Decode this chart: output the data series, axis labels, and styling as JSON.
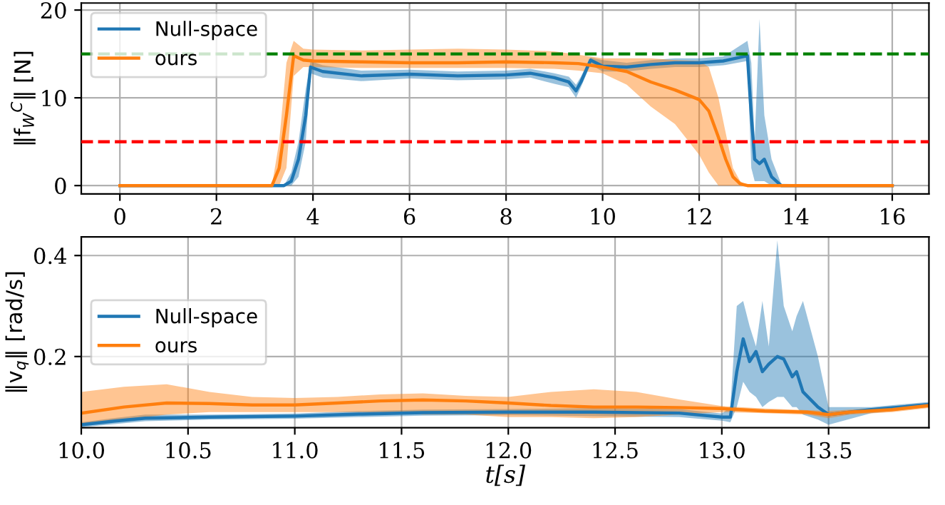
{
  "chart_data": [
    {
      "type": "line",
      "ylabel": "‖f$_{W}$$^{C}$‖ [N]",
      "xlim": [
        -0.8,
        16.76
      ],
      "ylim": [
        -0.95,
        20.8
      ],
      "xticks": [
        0,
        2,
        4,
        6,
        8,
        10,
        12,
        14,
        16
      ],
      "yticks": [
        0,
        10,
        20
      ],
      "grid": true,
      "legend": "top left",
      "line_style": "solid",
      "ref_lines": [
        {
          "axis": "y",
          "value": 15,
          "color": "#008000",
          "line_style": "dashed"
        },
        {
          "axis": "y",
          "value": 5,
          "color": "#ff0000",
          "line_style": "dashed"
        }
      ],
      "series": [
        {
          "name": "Null-space",
          "color": "#1f77b4",
          "x": [
            0,
            3.4,
            3.55,
            3.7,
            3.85,
            3.95,
            4.2,
            5,
            6,
            7,
            8,
            8.5,
            9,
            9.3,
            9.45,
            9.55,
            9.75,
            10,
            10.5,
            11,
            11.5,
            12,
            12.5,
            13.0,
            13.08,
            13.15,
            13.25,
            13.35,
            13.5,
            13.7,
            16
          ],
          "values": [
            0,
            0,
            0.5,
            3,
            8,
            13.5,
            13,
            12.5,
            12.7,
            12.5,
            12.6,
            12.8,
            12.3,
            11.8,
            10.8,
            11.8,
            14.3,
            13.6,
            13.5,
            13.8,
            14,
            14,
            14.2,
            14.8,
            8,
            3,
            2.5,
            3,
            1,
            0,
            0
          ],
          "lower": [
            0,
            0,
            0,
            1,
            5,
            12.8,
            12.3,
            11.9,
            12.2,
            12,
            12.1,
            12.3,
            11.6,
            11.2,
            10,
            11.2,
            13.8,
            13,
            13,
            13.3,
            13.5,
            13.5,
            13.7,
            14.2,
            2,
            0.5,
            0.5,
            0.5,
            0,
            0,
            0
          ],
          "upper": [
            0,
            0,
            1.5,
            5,
            11,
            14.2,
            13.7,
            13.1,
            13.2,
            13,
            13.1,
            13.3,
            12.8,
            12.4,
            11.5,
            12.4,
            14.6,
            14.3,
            14,
            14.3,
            14.5,
            14.5,
            14.7,
            16.5,
            14,
            5,
            19,
            8,
            3,
            0.2,
            0
          ]
        },
        {
          "name": "ours",
          "color": "#ff7f0e",
          "x": [
            0,
            3.15,
            3.3,
            3.45,
            3.6,
            3.8,
            4,
            5,
            6,
            7,
            8,
            9,
            9.5,
            10,
            10.5,
            11,
            11.5,
            12,
            12.2,
            12.4,
            12.55,
            12.7,
            12.85,
            13,
            16
          ],
          "values": [
            0,
            0,
            2,
            8,
            14.8,
            14.3,
            14.2,
            14.1,
            14,
            14,
            14.1,
            14,
            13.9,
            13.5,
            13,
            11.8,
            10.9,
            9.8,
            8.5,
            5.5,
            3,
            1,
            0.2,
            0,
            0
          ],
          "lower": [
            0,
            0,
            0,
            2,
            12.5,
            13.5,
            13.5,
            13.4,
            13.4,
            13.4,
            13.4,
            13.3,
            13.1,
            12.8,
            11.5,
            9,
            7,
            3.5,
            1.5,
            0,
            0,
            0,
            0,
            0,
            0
          ],
          "upper": [
            0,
            0,
            5,
            14,
            16.5,
            15.6,
            15.5,
            15.4,
            15.5,
            15.6,
            15.5,
            15.3,
            14.9,
            14.5,
            14.5,
            14.5,
            14.3,
            14.2,
            13.5,
            10,
            6,
            2,
            0.5,
            0,
            0
          ]
        }
      ]
    },
    {
      "type": "line",
      "xlabel": "t[s]",
      "ylabel": "‖v$_{q}$‖ [rad/s]",
      "xlim": [
        10.0,
        13.97
      ],
      "ylim": [
        0.059,
        0.437
      ],
      "xticks": [
        {
          "value": 10,
          "label": "10.0"
        },
        10.5,
        {
          "value": 11,
          "label": "11.0"
        },
        11.5,
        {
          "value": 12,
          "label": "12.0"
        },
        12.5,
        {
          "value": 13,
          "label": "13.0"
        },
        13.5
      ],
      "yticks": [
        0.2,
        0.4
      ],
      "grid": true,
      "legend": "center left",
      "line_style": "solid",
      "series": [
        {
          "name": "Null-space",
          "color": "#1f77b4",
          "x": [
            10.0,
            10.15,
            10.3,
            10.6,
            11.0,
            11.3,
            11.6,
            12.0,
            12.4,
            12.8,
            13.0,
            13.04,
            13.07,
            13.1,
            13.13,
            13.16,
            13.19,
            13.22,
            13.26,
            13.29,
            13.33,
            13.35,
            13.38,
            13.45,
            13.5,
            13.7,
            13.97
          ],
          "values": [
            0.065,
            0.072,
            0.078,
            0.08,
            0.082,
            0.086,
            0.089,
            0.09,
            0.09,
            0.088,
            0.08,
            0.08,
            0.17,
            0.235,
            0.19,
            0.21,
            0.17,
            0.185,
            0.2,
            0.195,
            0.16,
            0.17,
            0.13,
            0.1,
            0.085,
            0.095,
            0.105
          ],
          "lower": [
            0.06,
            0.066,
            0.072,
            0.075,
            0.077,
            0.08,
            0.083,
            0.084,
            0.082,
            0.08,
            0.073,
            0.07,
            0.1,
            0.15,
            0.13,
            0.12,
            0.1,
            0.11,
            0.12,
            0.12,
            0.1,
            0.1,
            0.085,
            0.075,
            0.065,
            0.088,
            0.1
          ],
          "upper": [
            0.07,
            0.078,
            0.085,
            0.085,
            0.087,
            0.092,
            0.095,
            0.096,
            0.098,
            0.096,
            0.087,
            0.1,
            0.3,
            0.31,
            0.26,
            0.22,
            0.31,
            0.22,
            0.43,
            0.3,
            0.25,
            0.28,
            0.31,
            0.2,
            0.1,
            0.1,
            0.11
          ]
        },
        {
          "name": "ours",
          "color": "#ff7f0e",
          "x": [
            10.0,
            10.2,
            10.4,
            10.6,
            10.8,
            11.0,
            11.2,
            11.4,
            11.6,
            11.8,
            12.0,
            12.2,
            12.4,
            12.6,
            12.8,
            13.0,
            13.2,
            13.4,
            13.5,
            13.6,
            13.8,
            13.97
          ],
          "values": [
            0.088,
            0.1,
            0.108,
            0.107,
            0.104,
            0.104,
            0.108,
            0.112,
            0.114,
            0.112,
            0.108,
            0.103,
            0.1,
            0.1,
            0.099,
            0.097,
            0.092,
            0.09,
            0.085,
            0.09,
            0.095,
            0.103
          ],
          "lower": [
            0.065,
            0.075,
            0.085,
            0.09,
            0.09,
            0.09,
            0.09,
            0.09,
            0.085,
            0.085,
            0.08,
            0.08,
            0.078,
            0.08,
            0.085,
            0.09,
            0.088,
            0.085,
            0.078,
            0.085,
            0.09,
            0.098
          ],
          "upper": [
            0.13,
            0.14,
            0.145,
            0.13,
            0.12,
            0.118,
            0.12,
            0.125,
            0.127,
            0.122,
            0.12,
            0.13,
            0.135,
            0.13,
            0.115,
            0.102,
            0.097,
            0.094,
            0.092,
            0.095,
            0.1,
            0.108
          ]
        }
      ]
    }
  ]
}
